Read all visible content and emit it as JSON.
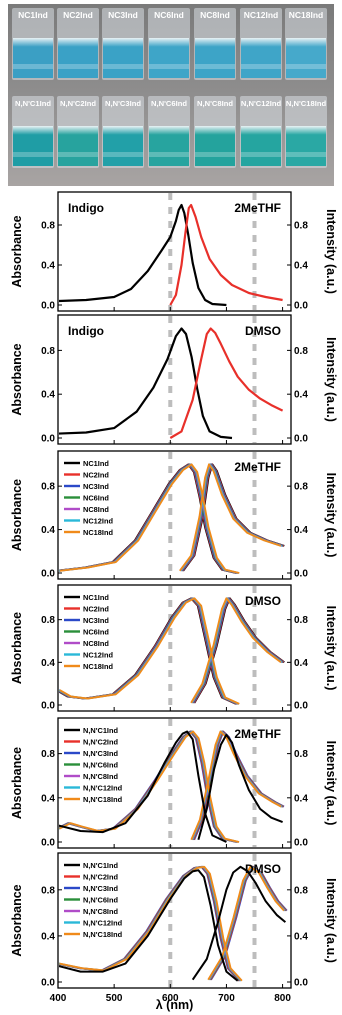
{
  "photo": {
    "top_row": [
      "NC1Ind",
      "NC2Ind",
      "NC3Ind",
      "NC6Ind",
      "NC8Ind",
      "NC12Ind",
      "NC18Ind"
    ],
    "bottom_row": [
      "N,N'C1Ind",
      "N,N'C2Ind",
      "N,N'C3Ind",
      "N,N'C6Ind",
      "N,N'C8Ind",
      "N,N'C12Ind",
      "N,N'C18Ind"
    ],
    "top_colors": [
      "#3b9fc4",
      "#3aa1c6",
      "#3aa2c6",
      "#3ea5c8",
      "#3da4c7",
      "#3fa5c8",
      "#46a9cb"
    ],
    "bottom_colors": [
      "#1f9da5",
      "#27a39e",
      "#22a0a8",
      "#27a49f",
      "#24a39d",
      "#25a5a0",
      "#2aa8a4"
    ],
    "background_color": "#8f8e8e"
  },
  "xaxis": {
    "label": "λ (nm)",
    "ticks": [
      "400",
      "500",
      "600",
      "700",
      "800"
    ],
    "range": [
      400,
      815
    ],
    "dashed_guides_at": [
      600,
      750
    ]
  },
  "chart_data": [
    {
      "type": "line",
      "left_label": "Absorbance",
      "right_label": "Intensity (a.u.)",
      "panel_label": "Indigo",
      "solvent": "2MeTHF",
      "yticks": [
        "0.0",
        "0.4",
        "0.8"
      ],
      "ylim": [
        0,
        1.05
      ],
      "legend": [],
      "series": [
        {
          "role": "absorbance",
          "color": "#000000",
          "points": [
            [
              400,
              0.04
            ],
            [
              450,
              0.05
            ],
            [
              500,
              0.08
            ],
            [
              530,
              0.16
            ],
            [
              560,
              0.34
            ],
            [
              585,
              0.55
            ],
            [
              600,
              0.68
            ],
            [
              610,
              0.84
            ],
            [
              615,
              0.95
            ],
            [
              620,
              1.0
            ],
            [
              625,
              0.92
            ],
            [
              632,
              0.7
            ],
            [
              640,
              0.42
            ],
            [
              650,
              0.17
            ],
            [
              662,
              0.05
            ],
            [
              675,
              0.01
            ],
            [
              700,
              0.0
            ]
          ]
        },
        {
          "role": "emission",
          "color": "#e8302a",
          "points": [
            [
              600,
              0.0
            ],
            [
              610,
              0.1
            ],
            [
              620,
              0.4
            ],
            [
              627,
              0.72
            ],
            [
              633,
              0.97
            ],
            [
              637,
              1.0
            ],
            [
              645,
              0.88
            ],
            [
              655,
              0.68
            ],
            [
              670,
              0.46
            ],
            [
              690,
              0.3
            ],
            [
              710,
              0.2
            ],
            [
              740,
              0.12
            ],
            [
              770,
              0.08
            ],
            [
              800,
              0.05
            ]
          ]
        }
      ]
    },
    {
      "type": "line",
      "left_label": "Absorbance",
      "right_label": "Intensity (a.u.)",
      "panel_label": "Indigo",
      "solvent": "DMSO",
      "yticks": [
        "0.0",
        "0.4",
        "0.8"
      ],
      "ylim": [
        0,
        1.05
      ],
      "legend": [],
      "series": [
        {
          "role": "absorbance",
          "color": "#000000",
          "points": [
            [
              400,
              0.04
            ],
            [
              450,
              0.05
            ],
            [
              500,
              0.09
            ],
            [
              540,
              0.24
            ],
            [
              570,
              0.46
            ],
            [
              595,
              0.72
            ],
            [
              610,
              0.93
            ],
            [
              620,
              1.0
            ],
            [
              628,
              0.95
            ],
            [
              638,
              0.74
            ],
            [
              648,
              0.45
            ],
            [
              658,
              0.2
            ],
            [
              670,
              0.06
            ],
            [
              690,
              0.01
            ],
            [
              710,
              0.0
            ]
          ]
        },
        {
          "role": "emission",
          "color": "#e8302a",
          "points": [
            [
              600,
              0.0
            ],
            [
              620,
              0.06
            ],
            [
              640,
              0.35
            ],
            [
              655,
              0.72
            ],
            [
              665,
              0.95
            ],
            [
              672,
              1.0
            ],
            [
              680,
              0.96
            ],
            [
              690,
              0.86
            ],
            [
              705,
              0.7
            ],
            [
              720,
              0.56
            ],
            [
              740,
              0.44
            ],
            [
              760,
              0.36
            ],
            [
              780,
              0.3
            ],
            [
              800,
              0.25
            ]
          ]
        }
      ]
    },
    {
      "type": "line",
      "left_label": "Absorbance",
      "right_label": "Intensity (a.u.)",
      "panel_label": "",
      "solvent": "2MeTHF",
      "yticks": [
        "0.0",
        "0.4",
        "0.8"
      ],
      "ylim": [
        0,
        1.05
      ],
      "legend": [
        "NC1Ind",
        "NC2Ind",
        "NC3Ind",
        "NC6Ind",
        "NC8Ind",
        "NC12Ind",
        "NC18Ind"
      ],
      "legend_colors": [
        "#000000",
        "#e8302a",
        "#2b49c8",
        "#2a8f3a",
        "#b04cc8",
        "#2ab8d8",
        "#f08a1a"
      ],
      "group_colors": [
        "#000000",
        "#e8302a",
        "#2b49c8",
        "#2a8f3a",
        "#b04cc8",
        "#2ab8d8",
        "#f08a1a"
      ],
      "absorbance": [
        [
          400,
          0.02
        ],
        [
          450,
          0.05
        ],
        [
          500,
          0.1
        ],
        [
          540,
          0.3
        ],
        [
          570,
          0.56
        ],
        [
          600,
          0.82
        ],
        [
          620,
          0.95
        ],
        [
          635,
          1.0
        ],
        [
          645,
          0.93
        ],
        [
          655,
          0.7
        ],
        [
          665,
          0.42
        ],
        [
          680,
          0.14
        ],
        [
          695,
          0.03
        ],
        [
          720,
          0.0
        ]
      ],
      "emission": [
        [
          620,
          0.02
        ],
        [
          640,
          0.16
        ],
        [
          655,
          0.52
        ],
        [
          665,
          0.88
        ],
        [
          672,
          1.0
        ],
        [
          680,
          0.94
        ],
        [
          695,
          0.72
        ],
        [
          715,
          0.5
        ],
        [
          740,
          0.37
        ],
        [
          770,
          0.3
        ],
        [
          800,
          0.25
        ]
      ]
    },
    {
      "type": "line",
      "left_label": "Absorbance",
      "right_label": "Intensity (a.u.)",
      "panel_label": "",
      "solvent": "DMSO",
      "yticks": [
        "0.0",
        "0.4",
        "0.8"
      ],
      "ylim": [
        0,
        1.05
      ],
      "legend": [
        "NC1Ind",
        "NC2Ind",
        "NC3Ind",
        "NC6Ind",
        "NC8Ind",
        "NC12Ind",
        "NC18Ind"
      ],
      "legend_colors": [
        "#000000",
        "#e8302a",
        "#2b49c8",
        "#2a8f3a",
        "#b04cc8",
        "#2ab8d8",
        "#f08a1a"
      ],
      "group_colors": [
        "#000000",
        "#e8302a",
        "#2b49c8",
        "#2a8f3a",
        "#b04cc8",
        "#2ab8d8",
        "#f08a1a"
      ],
      "absorbance": [
        [
          400,
          0.14
        ],
        [
          420,
          0.08
        ],
        [
          450,
          0.06
        ],
        [
          500,
          0.1
        ],
        [
          540,
          0.28
        ],
        [
          575,
          0.55
        ],
        [
          605,
          0.82
        ],
        [
          625,
          0.96
        ],
        [
          640,
          1.0
        ],
        [
          652,
          0.93
        ],
        [
          665,
          0.62
        ],
        [
          680,
          0.26
        ],
        [
          695,
          0.07
        ],
        [
          720,
          0.01
        ]
      ],
      "emission": [
        [
          640,
          0.02
        ],
        [
          660,
          0.2
        ],
        [
          680,
          0.56
        ],
        [
          695,
          0.9
        ],
        [
          703,
          1.0
        ],
        [
          712,
          0.94
        ],
        [
          730,
          0.78
        ],
        [
          750,
          0.63
        ],
        [
          775,
          0.5
        ],
        [
          800,
          0.4
        ]
      ]
    },
    {
      "type": "line",
      "left_label": "Absorbance",
      "right_label": "Intensity (a.u.)",
      "panel_label": "",
      "solvent": "2MeTHF",
      "yticks": [
        "0.0",
        "0.4",
        "0.8"
      ],
      "ylim": [
        0,
        1.05
      ],
      "legend": [
        "N,N'C1Ind",
        "N,N'C2Ind",
        "N,N'C3Ind",
        "N,N'C6Ind",
        "N,N'C8Ind",
        "N,N'C12Ind",
        "N,N'C18Ind"
      ],
      "legend_colors": [
        "#000000",
        "#e8302a",
        "#2b49c8",
        "#2a8f3a",
        "#b04cc8",
        "#2ab8d8",
        "#f08a1a"
      ],
      "group_colors": [
        "#2b49c8",
        "#e8302a",
        "#2a8f3a",
        "#b04cc8",
        "#2ab8d8",
        "#f08a1a"
      ],
      "absorbance": [
        [
          400,
          0.12
        ],
        [
          420,
          0.17
        ],
        [
          440,
          0.14
        ],
        [
          470,
          0.1
        ],
        [
          500,
          0.12
        ],
        [
          540,
          0.3
        ],
        [
          575,
          0.56
        ],
        [
          605,
          0.8
        ],
        [
          625,
          0.95
        ],
        [
          638,
          1.0
        ],
        [
          648,
          0.94
        ],
        [
          658,
          0.72
        ],
        [
          668,
          0.42
        ],
        [
          680,
          0.14
        ],
        [
          695,
          0.03
        ],
        [
          720,
          0.0
        ]
      ],
      "emission": [
        [
          640,
          0.02
        ],
        [
          655,
          0.2
        ],
        [
          670,
          0.55
        ],
        [
          683,
          0.88
        ],
        [
          692,
          1.0
        ],
        [
          702,
          0.95
        ],
        [
          715,
          0.8
        ],
        [
          735,
          0.6
        ],
        [
          760,
          0.44
        ],
        [
          785,
          0.36
        ],
        [
          800,
          0.32
        ]
      ],
      "outlier_absorbance": [
        [
          400,
          0.15
        ],
        [
          440,
          0.1
        ],
        [
          480,
          0.09
        ],
        [
          520,
          0.17
        ],
        [
          560,
          0.42
        ],
        [
          590,
          0.72
        ],
        [
          610,
          0.9
        ],
        [
          622,
          0.98
        ],
        [
          630,
          1.0
        ],
        [
          640,
          0.93
        ],
        [
          650,
          0.6
        ],
        [
          662,
          0.26
        ],
        [
          675,
          0.06
        ],
        [
          700,
          0.0
        ]
      ],
      "outlier_emission": [
        [
          650,
          0.02
        ],
        [
          665,
          0.3
        ],
        [
          678,
          0.66
        ],
        [
          690,
          0.88
        ],
        [
          700,
          0.97
        ],
        [
          710,
          0.9
        ],
        [
          722,
          0.7
        ],
        [
          740,
          0.47
        ],
        [
          760,
          0.3
        ],
        [
          780,
          0.22
        ],
        [
          800,
          0.18
        ]
      ]
    },
    {
      "type": "line",
      "left_label": "Absorbance",
      "right_label": "Intensity (a.u.)",
      "panel_label": "",
      "solvent": "DMSO",
      "yticks": [
        "0.0",
        "0.4",
        "0.8"
      ],
      "ylim": [
        0,
        1.05
      ],
      "legend": [
        "N,N'C1Ind",
        "N,N'C2Ind",
        "N,N'C3Ind",
        "N,N'C6Ind",
        "N,N'C8Ind",
        "N,N'C12Ind",
        "N,N'C18Ind"
      ],
      "legend_colors": [
        "#000000",
        "#e8302a",
        "#2b49c8",
        "#2a8f3a",
        "#b04cc8",
        "#2ab8d8",
        "#f08a1a"
      ],
      "group_colors": [
        "#2b49c8",
        "#e8302a",
        "#2a8f3a",
        "#b04cc8",
        "#2ab8d8",
        "#f08a1a"
      ],
      "absorbance": [
        [
          400,
          0.16
        ],
        [
          440,
          0.12
        ],
        [
          480,
          0.1
        ],
        [
          520,
          0.2
        ],
        [
          560,
          0.44
        ],
        [
          595,
          0.72
        ],
        [
          625,
          0.92
        ],
        [
          645,
          0.99
        ],
        [
          658,
          1.0
        ],
        [
          668,
          0.94
        ],
        [
          680,
          0.7
        ],
        [
          692,
          0.38
        ],
        [
          705,
          0.12
        ],
        [
          725,
          0.01
        ]
      ],
      "emission": [
        [
          670,
          0.02
        ],
        [
          695,
          0.22
        ],
        [
          715,
          0.56
        ],
        [
          732,
          0.88
        ],
        [
          745,
          1.0
        ],
        [
          760,
          0.95
        ],
        [
          775,
          0.82
        ],
        [
          790,
          0.7
        ],
        [
          805,
          0.62
        ]
      ],
      "outlier_absorbance": [
        [
          400,
          0.14
        ],
        [
          440,
          0.09
        ],
        [
          480,
          0.09
        ],
        [
          520,
          0.16
        ],
        [
          560,
          0.4
        ],
        [
          600,
          0.72
        ],
        [
          625,
          0.9
        ],
        [
          640,
          0.96
        ],
        [
          650,
          0.97
        ],
        [
          660,
          0.91
        ],
        [
          672,
          0.66
        ],
        [
          685,
          0.32
        ],
        [
          700,
          0.09
        ],
        [
          720,
          0.01
        ]
      ],
      "outlier_emission": [
        [
          640,
          0.02
        ],
        [
          665,
          0.2
        ],
        [
          685,
          0.52
        ],
        [
          700,
          0.8
        ],
        [
          712,
          0.95
        ],
        [
          725,
          1.0
        ],
        [
          738,
          0.96
        ],
        [
          752,
          0.86
        ],
        [
          770,
          0.7
        ],
        [
          790,
          0.58
        ],
        [
          805,
          0.52
        ]
      ]
    }
  ]
}
